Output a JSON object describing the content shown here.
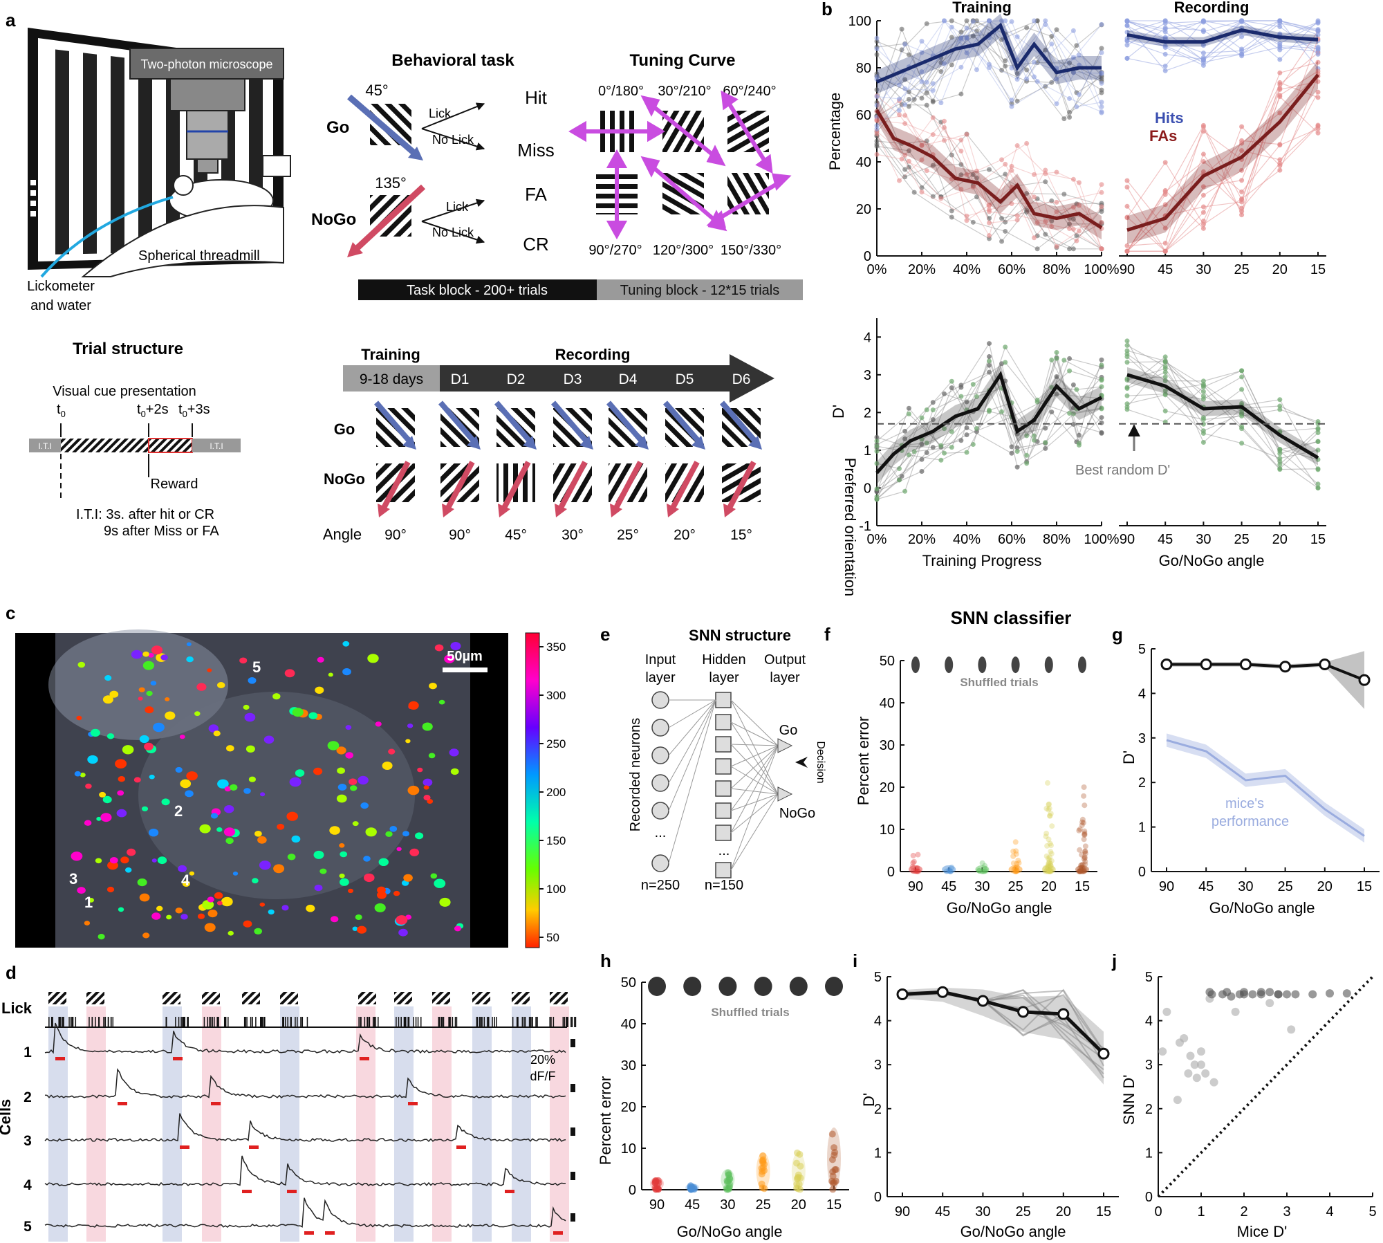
{
  "colors": {
    "go": "#5a6fb5",
    "nogo": "#d04a63",
    "hits": "#1a2a6c",
    "fas": "#7a1e1e",
    "hitsLabel": "#3b4fb0",
    "fasLabel": "#8b1a1a",
    "violet": "#c94ce0",
    "green": "#6ea86e",
    "grey": "#888888"
  },
  "panelA": {
    "label": "a",
    "microscope": "Two-photon microscope",
    "treadmill": "Spherical threadmill",
    "lickometer1": "Lickometer",
    "lickometer2": "and water",
    "taskTitle": "Behavioral task",
    "goAngle": "45°",
    "nogoAngle": "135°",
    "go": "Go",
    "nogo": "NoGo",
    "lick": "Lick",
    "noLick": "No Lick",
    "hit": "Hit",
    "miss": "Miss",
    "fa": "FA",
    "cr": "CR",
    "tuningTitle": "Tuning Curve",
    "tuningTop": [
      "0°/180°",
      "30°/210°",
      "60°/240°"
    ],
    "tuningBottom": [
      "90°/270°",
      "120°/300°",
      "150°/330°"
    ],
    "taskBlock": "Task block - 200+ trials",
    "tuningBlock": "Tuning block - 12*15 trials",
    "trialTitle": "Trial structure",
    "visualCue": "Visual cue presentation",
    "t0": "t",
    "t0sub": "0",
    "t2": "t",
    "t2sub": "0",
    "t2suffix": "+2s",
    "t3": "t",
    "t3sub": "0",
    "t3suffix": "+3s",
    "iti": "I.T.I",
    "reward": "Reward",
    "itiText1": "I.T.I: 3s. after hit or CR",
    "itiText2": "9s after Miss or FA",
    "trainingLabel": "Training",
    "recordingLabel": "Recording",
    "trainingDays": "9-18 days",
    "days": [
      "D1",
      "D2",
      "D3",
      "D4",
      "D5",
      "D6"
    ],
    "angleLabel": "Angle",
    "angles": [
      "90°",
      "90°",
      "45°",
      "30°",
      "25°",
      "20°",
      "15°"
    ]
  },
  "panelB": {
    "label": "b",
    "trainingTitle": "Training",
    "recordingTitle": "Recording",
    "yTop": "Percentage",
    "yBottom": "D'",
    "hits": "Hits",
    "fas": "FAs",
    "pctTicks": [
      "0",
      "20",
      "40",
      "60",
      "80",
      "100"
    ],
    "dTicks": [
      "-1",
      "0",
      "1",
      "2",
      "3",
      "4"
    ],
    "xTraining": [
      "0%",
      "20%",
      "40%",
      "60%",
      "80%",
      "100%"
    ],
    "xRecording": [
      "90",
      "45",
      "30",
      "25",
      "20",
      "15"
    ],
    "xLabelTraining": "Training Progress",
    "xLabelRecording": "Go/NoGo angle",
    "bestRandom": "Best random D'"
  },
  "chart_data": [
    {
      "type": "line",
      "title": "Training",
      "xlabel": "Training Progress",
      "ylabel": "Percentage",
      "ylim": [
        0,
        100
      ],
      "x": [
        0,
        7.5,
        15,
        25,
        35,
        45,
        55,
        62.5,
        70,
        80,
        90,
        100
      ],
      "series": [
        {
          "name": "Hits",
          "values": [
            74,
            77,
            80,
            84,
            88,
            90,
            98,
            80,
            90,
            78,
            80,
            80
          ]
        },
        {
          "name": "FAs",
          "values": [
            62,
            50,
            47,
            42,
            33,
            31,
            23,
            30,
            18,
            16,
            18,
            12
          ]
        }
      ]
    },
    {
      "type": "line",
      "title": "Recording",
      "xlabel": "Go/NoGo angle",
      "ylabel": "Percentage",
      "ylim": [
        0,
        100
      ],
      "categories": [
        "90",
        "45",
        "30",
        "25",
        "20",
        "15"
      ],
      "series": [
        {
          "name": "Hits",
          "values": [
            94,
            91,
            91,
            96,
            93,
            92
          ]
        },
        {
          "name": "FAs",
          "values": [
            11,
            16,
            34,
            42,
            57,
            77
          ]
        }
      ]
    },
    {
      "type": "line",
      "title": "Training D'",
      "xlabel": "Training Progress",
      "ylabel": "D'",
      "ylim": [
        -1,
        4.5
      ],
      "x": [
        0,
        7.5,
        15,
        25,
        35,
        45,
        55,
        62.5,
        70,
        80,
        90,
        100
      ],
      "series": [
        {
          "name": "mean D'",
          "values": [
            0.4,
            0.9,
            1.25,
            1.5,
            1.9,
            2.1,
            3.0,
            1.5,
            1.8,
            2.7,
            2.1,
            2.4
          ]
        }
      ],
      "reference": {
        "name": "Best random D'",
        "value": 1.7
      }
    },
    {
      "type": "line",
      "title": "Recording D'",
      "xlabel": "Go/NoGo angle",
      "ylabel": "D'",
      "ylim": [
        -1,
        4.5
      ],
      "categories": [
        "90",
        "45",
        "30",
        "25",
        "20",
        "15"
      ],
      "series": [
        {
          "name": "mean D'",
          "values": [
            3.0,
            2.7,
            2.1,
            2.15,
            1.4,
            0.8
          ]
        }
      ]
    },
    {
      "type": "scatter",
      "title": "SNN classifier f",
      "xlabel": "Go/NoGo angle",
      "ylabel": "Percent error",
      "ylim": [
        0,
        50
      ],
      "categories": [
        "90",
        "45",
        "30",
        "25",
        "20",
        "15"
      ],
      "series": [
        {
          "name": "SNN max error",
          "values": [
            4,
            1,
            2,
            7,
            21,
            20
          ]
        },
        {
          "name": "Shuffled trials",
          "values": [
            50,
            50,
            50,
            50,
            50,
            50
          ]
        }
      ]
    },
    {
      "type": "line",
      "title": "g",
      "xlabel": "Go/NoGo angle",
      "ylabel": "D'",
      "ylim": [
        0,
        5
      ],
      "categories": [
        "90",
        "45",
        "30",
        "25",
        "20",
        "15"
      ],
      "series": [
        {
          "name": "SNN",
          "values": [
            4.65,
            4.65,
            4.65,
            4.6,
            4.65,
            4.3
          ]
        },
        {
          "name": "mice's performance",
          "values": [
            2.95,
            2.7,
            2.05,
            2.15,
            1.4,
            0.8
          ]
        }
      ]
    },
    {
      "type": "scatter",
      "title": "h",
      "xlabel": "Go/NoGo angle",
      "ylabel": "Percent error",
      "ylim": [
        0,
        50
      ],
      "categories": [
        "90",
        "45",
        "30",
        "25",
        "20",
        "15"
      ],
      "series": [
        {
          "name": "SNN median error",
          "values": [
            1,
            0,
            1,
            2,
            3,
            7
          ]
        },
        {
          "name": "Shuffled trials",
          "values": [
            50,
            50,
            50,
            50,
            50,
            50
          ]
        }
      ]
    },
    {
      "type": "line",
      "title": "i",
      "xlabel": "Go/NoGo angle",
      "ylabel": "D'",
      "ylim": [
        0,
        5
      ],
      "categories": [
        "90",
        "45",
        "30",
        "25",
        "20",
        "15"
      ],
      "series": [
        {
          "name": "SNN D'",
          "values": [
            4.6,
            4.65,
            4.45,
            4.2,
            4.15,
            3.25
          ]
        }
      ]
    },
    {
      "type": "scatter",
      "title": "j",
      "xlabel": "Mice D'",
      "ylabel": "SNN D'",
      "xlim": [
        0,
        5
      ],
      "ylim": [
        0,
        5
      ],
      "x": [
        0.1,
        0.2,
        0.45,
        0.6,
        0.7,
        0.75,
        0.85,
        0.9,
        1.0,
        1.1,
        1.2,
        1.25,
        1.3,
        1.5,
        1.7,
        1.9,
        2.0,
        2.2,
        2.4,
        2.6,
        2.8,
        3.0,
        3.2,
        3.6,
        4.0,
        4.4,
        1.2,
        1.6,
        2.0,
        2.4,
        2.8,
        0.5,
        1.0,
        1.8,
        2.6,
        3.1
      ],
      "y": [
        3.3,
        4.2,
        2.2,
        3.6,
        2.8,
        3.2,
        3.0,
        2.7,
        3.3,
        2.8,
        4.5,
        4.6,
        2.6,
        4.6,
        4.55,
        4.6,
        4.65,
        4.6,
        4.6,
        4.65,
        4.6,
        4.6,
        4.6,
        4.6,
        4.62,
        4.62,
        4.65,
        4.65,
        4.6,
        4.65,
        4.6,
        3.5,
        3.0,
        4.2,
        4.4,
        3.8
      ]
    }
  ],
  "panelC": {
    "label": "c",
    "scale": "50µm",
    "colorbarTicks": [
      "350",
      "300",
      "250",
      "200",
      "150",
      "100",
      "50"
    ],
    "colorbarLabel": "Preferred orientation",
    "cells": [
      "5",
      "2",
      "3",
      "4",
      "1"
    ]
  },
  "panelD": {
    "label": "d",
    "lick": "Lick",
    "cellsLabel": "Cells",
    "rows": [
      "1",
      "2",
      "3",
      "4",
      "5"
    ],
    "scale1": "20%",
    "scale2": "dF/F"
  },
  "panelE": {
    "label": "e",
    "title": "SNN structure",
    "input": "Input",
    "inputLayer": "layer",
    "hidden": "Hidden",
    "hiddenLayer": "layer",
    "output": "Output",
    "outputLayer": "layer",
    "recorded": "Recorded neurons",
    "dots1": "...",
    "dots2": "...",
    "n1": "n=250",
    "n2": "n=150",
    "go": "Go",
    "nogo": "NoGo",
    "decision": "Decision"
  },
  "panelF": {
    "label": "f",
    "title": "SNN classifier",
    "ylabel": "Percent error",
    "xlabel": "Go/NoGo angle",
    "shuffled": "Shuffled trials",
    "yticks": [
      "0",
      "10",
      "20",
      "30",
      "40",
      "50"
    ],
    "xticks": [
      "90",
      "45",
      "30",
      "25",
      "20",
      "15"
    ]
  },
  "panelG": {
    "label": "g",
    "ylabel": "D'",
    "xlabel": "Go/NoGo angle",
    "mice1": "mice's",
    "mice2": "performance",
    "yticks": [
      "0",
      "1",
      "2",
      "3",
      "4",
      "5"
    ],
    "xticks": [
      "90",
      "45",
      "30",
      "25",
      "20",
      "15"
    ]
  },
  "panelH": {
    "label": "h",
    "ylabel": "Percent error",
    "xlabel": "Go/NoGo angle",
    "shuffled": "Shuffled trials",
    "yticks": [
      "0",
      "10",
      "20",
      "30",
      "40",
      "50"
    ],
    "xticks": [
      "90",
      "45",
      "30",
      "25",
      "20",
      "15"
    ]
  },
  "panelI": {
    "label": "i",
    "ylabel": "D'",
    "xlabel": "Go/NoGo angle",
    "yticks": [
      "0",
      "1",
      "2",
      "3",
      "4",
      "5"
    ],
    "xticks": [
      "90",
      "45",
      "30",
      "25",
      "20",
      "15"
    ]
  },
  "panelJ": {
    "label": "j",
    "ylabel": "SNN D'",
    "xlabel": "Mice D'",
    "yticks": [
      "0",
      "1",
      "2",
      "3",
      "4",
      "5"
    ],
    "xticks": [
      "0",
      "1",
      "2",
      "3",
      "4",
      "5"
    ]
  }
}
